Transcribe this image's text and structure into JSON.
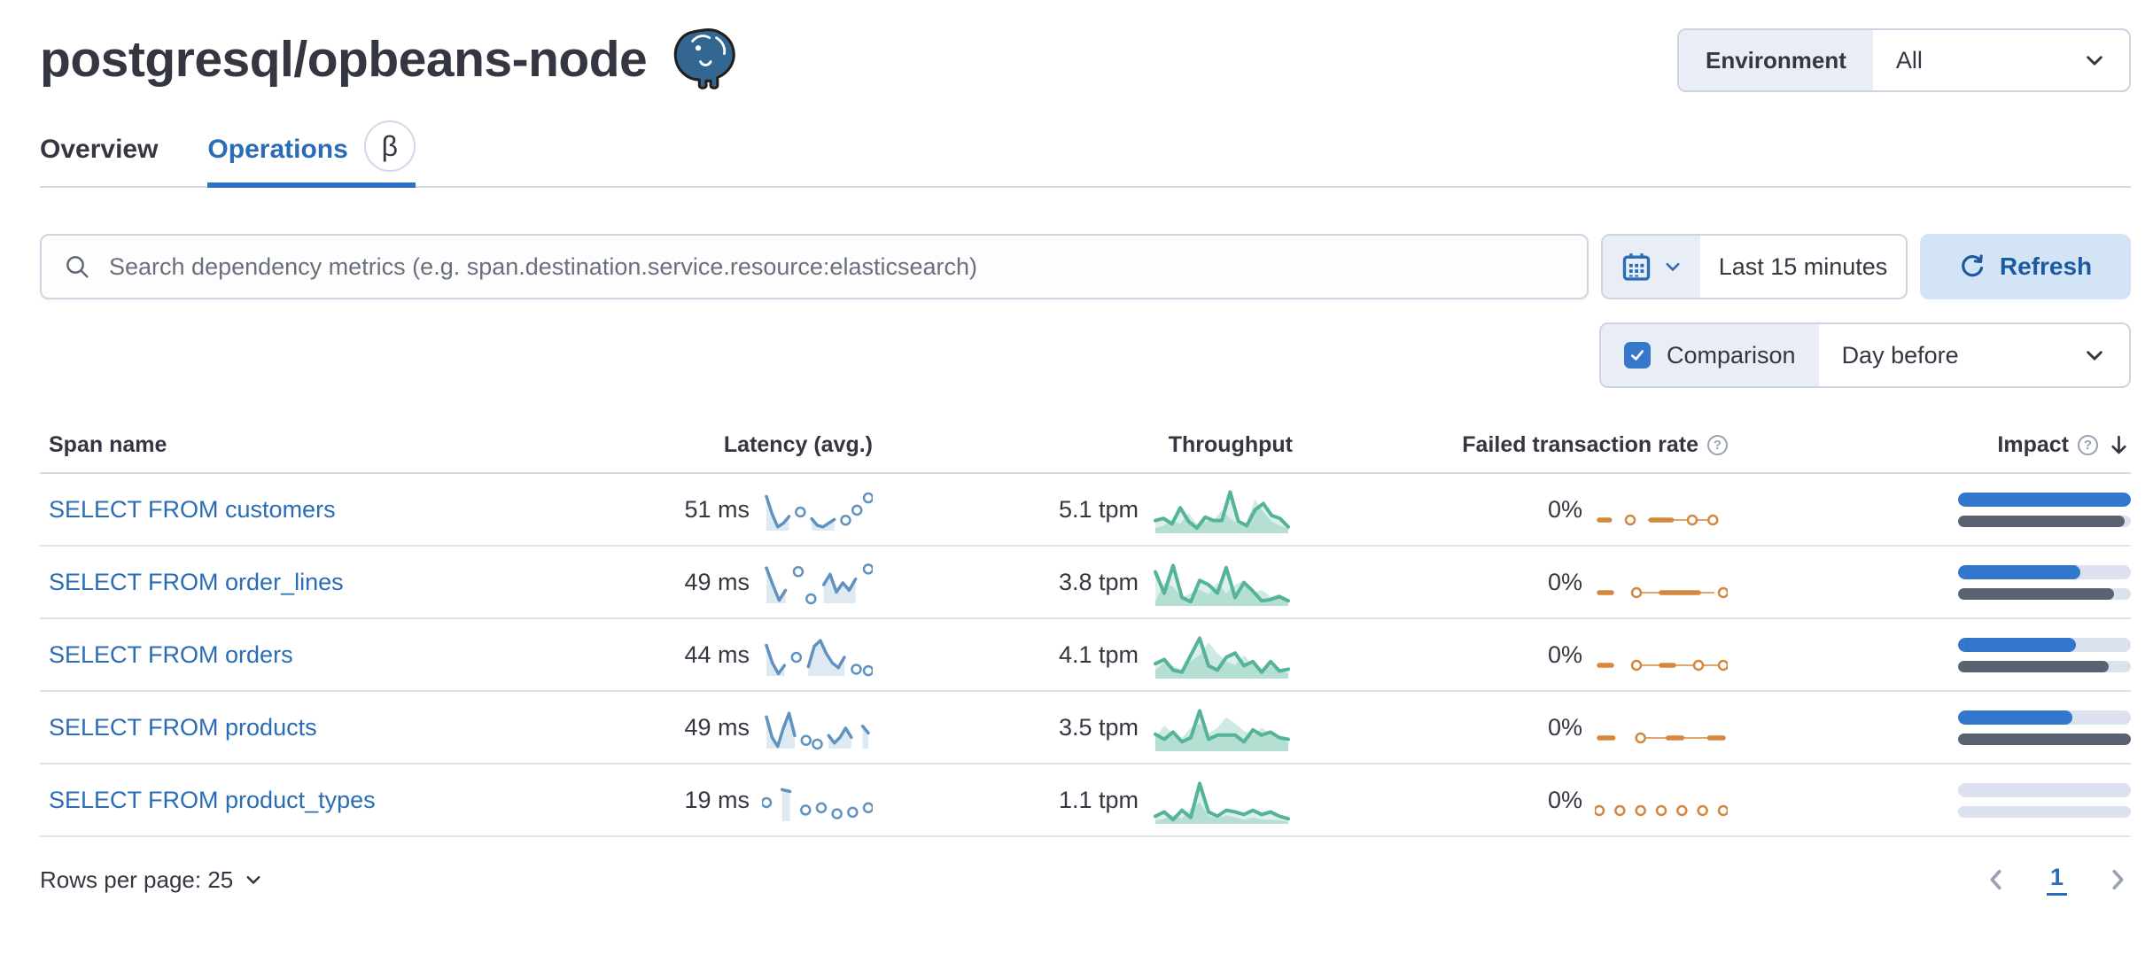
{
  "page": {
    "title": "postgresql/opbeans-node"
  },
  "environment": {
    "label": "Environment",
    "value": "All"
  },
  "tabs": [
    {
      "label": "Overview"
    },
    {
      "label": "Operations",
      "beta": "β"
    }
  ],
  "toolbar": {
    "search_placeholder": "Search dependency metrics (e.g. span.destination.service.resource:elasticsearch)",
    "time_range": "Last 15 minutes",
    "refresh_label": "Refresh",
    "comparison_label": "Comparison",
    "comparison_checked": true,
    "comparison_value": "Day before"
  },
  "table": {
    "columns": [
      {
        "label": "Span name"
      },
      {
        "label": "Latency (avg.)"
      },
      {
        "label": "Throughput"
      },
      {
        "label": "Failed transaction rate",
        "help": true
      },
      {
        "label": "Impact",
        "help": true,
        "sorted": "desc"
      }
    ],
    "rows": [
      {
        "span_name": "SELECT FROM customers",
        "latency": "51 ms",
        "throughput": "5.1 tpm",
        "failed_rate": "0%",
        "impact": {
          "blue": 100,
          "gray": 96.5
        },
        "sparks": {
          "latency": {
            "color": "blue",
            "fill": true,
            "y": [
              0.92,
              0.45,
              0.1,
              0.2,
              0.38,
              null,
              0.5,
              null,
              0.32,
              0.14,
              0.1,
              0.2,
              0.3,
              null,
              0.28,
              null,
              0.55,
              null,
              0.88
            ]
          },
          "throughput": {
            "color": "green",
            "fill": true,
            "y": [
              0.3,
              0.35,
              0.22,
              0.6,
              0.28,
              0.12,
              0.38,
              0.3,
              0.3,
              0.97,
              0.28,
              0.18,
              0.55,
              0.7,
              0.42,
              0.35,
              0.15
            ],
            "comp": [
              0.12,
              0.18,
              0.32,
              0.22,
              0.48,
              0.22,
              0.28,
              0.3,
              0.55,
              0.35,
              0.22,
              0.25,
              0.8,
              0.5,
              0.28,
              0.18,
              0.1
            ]
          },
          "failed": {
            "color": "orange",
            "flat": true,
            "connect": [
              0.4,
              0.93
            ],
            "y": [
              0,
              0,
              null,
              0,
              null,
              0,
              0,
              0,
              null,
              0,
              null,
              0,
              null
            ]
          }
        }
      },
      {
        "span_name": "SELECT FROM order_lines",
        "latency": "49 ms",
        "throughput": "3.8 tpm",
        "failed_rate": "0%",
        "impact": {
          "blue": 71,
          "gray": 90
        },
        "sparks": {
          "latency": {
            "color": "blue",
            "fill": true,
            "y": [
              0.95,
              0.5,
              0.08,
              0.35,
              null,
              0.85,
              null,
              0.12,
              null,
              0.5,
              0.78,
              0.3,
              0.55,
              0.35,
              0.65,
              null,
              0.92
            ]
          },
          "throughput": {
            "color": "green",
            "fill": true,
            "y": [
              0.8,
              0.3,
              0.95,
              0.2,
              0.1,
              0.6,
              0.5,
              0.3,
              0.9,
              0.2,
              0.55,
              0.35,
              0.12,
              0.15,
              0.22,
              0.12
            ],
            "comp": [
              0.1,
              0.55,
              0.45,
              0.2,
              0.3,
              0.38,
              0.28,
              0.55,
              0.3,
              0.5,
              0.6,
              0.3,
              0.38,
              0.22,
              0.28,
              0.1
            ]
          },
          "failed": {
            "color": "orange",
            "flat": true,
            "connect": [
              0.35,
              0.9
            ],
            "y": [
              0,
              0,
              null,
              0,
              null,
              0,
              0,
              0,
              0,
              null,
              0
            ]
          }
        }
      },
      {
        "span_name": "SELECT FROM orders",
        "latency": "44 ms",
        "throughput": "4.1 tpm",
        "failed_rate": "0%",
        "impact": {
          "blue": 68,
          "gray": 87
        },
        "sparks": {
          "latency": {
            "color": "blue",
            "fill": true,
            "y": [
              0.82,
              0.35,
              0.06,
              0.28,
              null,
              0.5,
              null,
              0.25,
              0.8,
              0.95,
              0.6,
              0.35,
              0.22,
              0.5,
              null,
              0.18,
              null,
              0.14
            ]
          },
          "throughput": {
            "color": "green",
            "fill": true,
            "y": [
              0.35,
              0.45,
              0.2,
              0.15,
              0.55,
              0.95,
              0.3,
              0.2,
              0.5,
              0.6,
              0.3,
              0.4,
              0.15,
              0.4,
              0.18,
              0.22
            ],
            "comp": [
              0.2,
              0.38,
              0.3,
              0.22,
              0.42,
              0.55,
              0.85,
              0.6,
              0.4,
              0.32,
              0.55,
              0.32,
              0.22,
              0.3,
              0.2,
              0.12
            ]
          },
          "failed": {
            "color": "orange",
            "flat": true,
            "connect": [
              0.35,
              0.95
            ],
            "y": [
              0,
              0,
              null,
              0,
              null,
              0,
              0,
              null,
              0,
              null,
              0
            ]
          }
        }
      },
      {
        "span_name": "SELECT FROM products",
        "latency": "49 ms",
        "throughput": "3.5 tpm",
        "failed_rate": "0%",
        "impact": {
          "blue": 66,
          "gray": 100
        },
        "sparks": {
          "latency": {
            "color": "blue",
            "fill": true,
            "y": [
              0.85,
              0.3,
              0.06,
              0.55,
              0.95,
              0.35,
              null,
              0.22,
              null,
              0.12,
              null,
              0.35,
              0.15,
              0.3,
              0.55,
              0.3,
              null,
              0.6,
              0.42
            ]
          },
          "throughput": {
            "color": "green",
            "fill": true,
            "y": [
              0.4,
              0.28,
              0.45,
              0.22,
              0.32,
              0.95,
              0.28,
              0.38,
              0.38,
              0.38,
              0.22,
              0.5,
              0.38,
              0.45,
              0.32,
              0.28
            ],
            "comp": [
              0.32,
              0.6,
              0.42,
              0.32,
              0.55,
              0.65,
              0.42,
              0.55,
              0.8,
              0.65,
              0.48,
              0.38,
              0.55,
              0.42,
              0.32,
              0.2
            ]
          },
          "failed": {
            "color": "orange",
            "flat": true,
            "connect": [
              0.35,
              0.88
            ],
            "y": [
              0,
              0,
              null,
              0,
              null,
              0,
              0,
              null,
              0,
              0
            ]
          }
        }
      },
      {
        "span_name": "SELECT FROM product_types",
        "latency": "19 ms",
        "throughput": "1.1 tpm",
        "failed_rate": "0%",
        "impact": {
          "blue": 0,
          "gray": 0
        },
        "sparks": {
          "latency": {
            "color": "blue",
            "fill": true,
            "y": [
              0.5,
              null,
              0.85,
              0.8,
              null,
              0.3,
              null,
              0.36,
              null,
              0.2,
              null,
              0.24,
              null,
              0.36
            ]
          },
          "throughput": {
            "color": "green",
            "fill": true,
            "y": [
              0.18,
              0.28,
              0.1,
              0.32,
              0.15,
              0.95,
              0.28,
              0.18,
              0.32,
              0.28,
              0.22,
              0.32,
              0.22,
              0.28,
              0.18,
              0.12
            ],
            "comp": [
              0.08,
              0.12,
              0.22,
              0.12,
              0.38,
              0.5,
              0.2,
              0.12,
              0.2,
              0.15,
              0.1,
              0.15,
              0.1,
              0.1,
              0.08,
              0.05
            ]
          },
          "failed": {
            "color": "orange",
            "flat": true,
            "y": [
              0,
              null,
              0,
              null,
              0,
              null,
              0,
              null,
              0,
              null,
              0,
              null,
              0
            ]
          }
        }
      }
    ]
  },
  "footer": {
    "rows_per_page_label": "Rows per page: 25",
    "page": "1"
  },
  "colors": {
    "blue": "#6092c0",
    "green": "#54b399",
    "orange": "#d4873d",
    "impactBlue": "#3377cc",
    "impactGray": "#5a6271",
    "track": "#dbe1ee",
    "link": "#2a6cb5",
    "tab_underline": "#3070c4",
    "checkbox": "#3577c9",
    "refresh_bg": "#d3e4f6",
    "refresh_text": "#1c5a9e"
  },
  "icons": {
    "search": "magnifier",
    "calendar": "calendar-grid",
    "refresh": "circular-arrow",
    "chevron_down": "⌄",
    "sort_desc": "↓",
    "help": "?",
    "beta": "β",
    "prev": "‹",
    "next": "›",
    "postgresql": "elephant-logo",
    "checkmark": "✓"
  }
}
